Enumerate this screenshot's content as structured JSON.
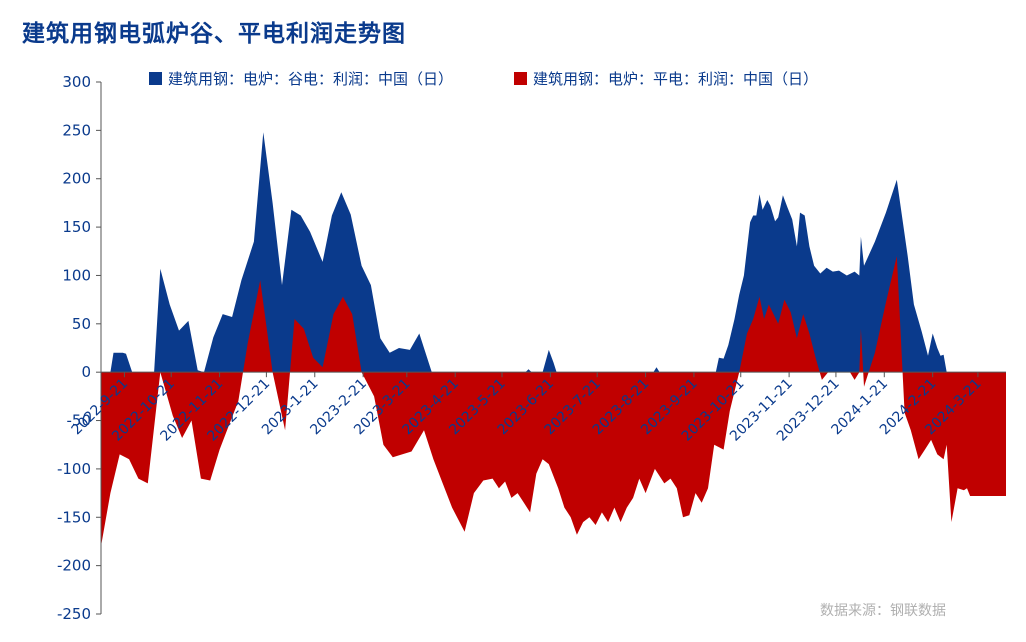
{
  "chart_data": {
    "type": "area",
    "title": "建筑用钢电弧炉谷、平电利润走势图",
    "source": "数据来源：钢联数据",
    "ylim": [
      -250,
      300
    ],
    "yticks": [
      300,
      250,
      200,
      150,
      100,
      50,
      0,
      -50,
      -100,
      -150,
      -200,
      -250
    ],
    "ytick_labels": [
      "300",
      "250",
      "200",
      "150",
      "100",
      "50",
      "0",
      "-50",
      "-100",
      "-150",
      "-200",
      "-250"
    ],
    "x_start": "2022-09-06",
    "x_end": "2024-04-08",
    "xticks": [
      {
        "date": "2022-09-21",
        "label": "2022-9-21"
      },
      {
        "date": "2022-10-21",
        "label": "2022-10-21"
      },
      {
        "date": "2022-11-21",
        "label": "2022-11-21"
      },
      {
        "date": "2022-12-21",
        "label": "2022-12-21"
      },
      {
        "date": "2023-01-21",
        "label": "2023-1-21"
      },
      {
        "date": "2023-02-21",
        "label": "2023-2-21"
      },
      {
        "date": "2023-03-21",
        "label": "2023-3-21"
      },
      {
        "date": "2023-04-21",
        "label": "2023-4-21"
      },
      {
        "date": "2023-05-21",
        "label": "2023-5-21"
      },
      {
        "date": "2023-06-21",
        "label": "2023-6-21"
      },
      {
        "date": "2023-07-21",
        "label": "2023-7-21"
      },
      {
        "date": "2023-08-21",
        "label": "2023-8-21"
      },
      {
        "date": "2023-09-21",
        "label": "2023-9-21"
      },
      {
        "date": "2023-10-21",
        "label": "2023-10-21"
      },
      {
        "date": "2023-11-21",
        "label": "2023-11-21"
      },
      {
        "date": "2023-12-21",
        "label": "2023-12-21"
      },
      {
        "date": "2024-01-21",
        "label": "2024-1-21"
      },
      {
        "date": "2024-02-21",
        "label": "2024-2-21"
      },
      {
        "date": "2024-03-21",
        "label": "2024-3-21"
      }
    ],
    "legend_position": "top",
    "grid": false,
    "series": [
      {
        "name": "建筑用钢：电炉：谷电：利润：中国（日）",
        "color": "#0a3a8c",
        "points": [
          [
            "2022-09-06",
            0
          ],
          [
            "2022-09-12",
            0
          ],
          [
            "2022-09-14",
            20
          ],
          [
            "2022-09-20",
            20
          ],
          [
            "2022-09-22",
            19
          ],
          [
            "2022-09-26",
            0
          ],
          [
            "2022-10-10",
            0
          ],
          [
            "2022-10-14",
            107
          ],
          [
            "2022-10-20",
            70
          ],
          [
            "2022-10-26",
            43
          ],
          [
            "2022-11-01",
            53
          ],
          [
            "2022-11-07",
            2
          ],
          [
            "2022-11-11",
            0
          ],
          [
            "2022-11-17",
            36
          ],
          [
            "2022-11-23",
            60
          ],
          [
            "2022-11-29",
            57
          ],
          [
            "2022-12-05",
            95
          ],
          [
            "2022-12-13",
            135
          ],
          [
            "2022-12-19",
            248
          ],
          [
            "2022-12-25",
            175
          ],
          [
            "2022-12-31",
            90
          ],
          [
            "2023-01-06",
            168
          ],
          [
            "2023-01-12",
            162
          ],
          [
            "2023-01-18",
            145
          ],
          [
            "2023-01-26",
            114
          ],
          [
            "2023-02-01",
            162
          ],
          [
            "2023-02-07",
            186
          ],
          [
            "2023-02-13",
            163
          ],
          [
            "2023-02-20",
            110
          ],
          [
            "2023-02-26",
            90
          ],
          [
            "2023-03-04",
            35
          ],
          [
            "2023-03-10",
            20
          ],
          [
            "2023-03-16",
            25
          ],
          [
            "2023-03-23",
            23
          ],
          [
            "2023-03-29",
            40
          ],
          [
            "2023-04-06",
            0
          ],
          [
            "2023-06-05",
            0
          ],
          [
            "2023-06-07",
            3
          ],
          [
            "2023-06-09",
            0
          ],
          [
            "2023-06-16",
            0
          ],
          [
            "2023-06-20",
            23
          ],
          [
            "2023-06-23",
            10
          ],
          [
            "2023-06-25",
            0
          ],
          [
            "2023-08-26",
            0
          ],
          [
            "2023-08-28",
            5
          ],
          [
            "2023-08-30",
            0
          ],
          [
            "2023-10-05",
            0
          ],
          [
            "2023-10-07",
            15
          ],
          [
            "2023-10-10",
            14
          ],
          [
            "2023-10-13",
            28
          ],
          [
            "2023-10-17",
            55
          ],
          [
            "2023-10-20",
            80
          ],
          [
            "2023-10-23",
            100
          ],
          [
            "2023-10-27",
            155
          ],
          [
            "2023-10-29",
            162
          ],
          [
            "2023-10-31",
            162
          ],
          [
            "2023-11-02",
            184
          ],
          [
            "2023-11-04",
            168
          ],
          [
            "2023-11-07",
            178
          ],
          [
            "2023-11-09",
            172
          ],
          [
            "2023-11-12",
            156
          ],
          [
            "2023-11-14",
            160
          ],
          [
            "2023-11-17",
            183
          ],
          [
            "2023-11-20",
            170
          ],
          [
            "2023-11-23",
            158
          ],
          [
            "2023-11-26",
            130
          ],
          [
            "2023-11-28",
            165
          ],
          [
            "2023-12-01",
            162
          ],
          [
            "2023-12-04",
            130
          ],
          [
            "2023-12-07",
            110
          ],
          [
            "2023-12-11",
            102
          ],
          [
            "2023-12-15",
            108
          ],
          [
            "2023-12-19",
            104
          ],
          [
            "2023-12-23",
            105
          ],
          [
            "2023-12-28",
            100
          ],
          [
            "2024-01-02",
            104
          ],
          [
            "2024-01-05",
            100
          ],
          [
            "2024-01-06",
            140
          ],
          [
            "2024-01-08",
            110
          ],
          [
            "2024-01-15",
            135
          ],
          [
            "2024-01-22",
            165
          ],
          [
            "2024-01-29",
            199
          ],
          [
            "2024-02-05",
            120
          ],
          [
            "2024-02-09",
            70
          ],
          [
            "2024-02-14",
            42
          ],
          [
            "2024-02-18",
            17
          ],
          [
            "2024-02-21",
            40
          ],
          [
            "2024-02-24",
            25
          ],
          [
            "2024-02-26",
            17
          ],
          [
            "2024-02-28",
            18
          ],
          [
            "2024-03-01",
            0
          ],
          [
            "2024-04-08",
            0
          ]
        ]
      },
      {
        "name": "建筑用钢：电炉：平电：利润：中国（日）",
        "color": "#c00000",
        "points": [
          [
            "2022-09-06",
            -180
          ],
          [
            "2022-09-12",
            -125
          ],
          [
            "2022-09-18",
            -85
          ],
          [
            "2022-09-24",
            -90
          ],
          [
            "2022-09-30",
            -110
          ],
          [
            "2022-10-06",
            -115
          ],
          [
            "2022-10-14",
            0
          ],
          [
            "2022-10-22",
            -45
          ],
          [
            "2022-10-28",
            -68
          ],
          [
            "2022-11-03",
            -50
          ],
          [
            "2022-11-09",
            -110
          ],
          [
            "2022-11-15",
            -112
          ],
          [
            "2022-11-21",
            -80
          ],
          [
            "2022-11-27",
            -55
          ],
          [
            "2022-12-03",
            -30
          ],
          [
            "2022-12-09",
            30
          ],
          [
            "2022-12-17",
            95
          ],
          [
            "2022-12-25",
            0
          ],
          [
            "2023-01-02",
            -60
          ],
          [
            "2023-01-08",
            55
          ],
          [
            "2023-01-14",
            45
          ],
          [
            "2023-01-20",
            15
          ],
          [
            "2023-01-26",
            5
          ],
          [
            "2023-02-02",
            60
          ],
          [
            "2023-02-08",
            78
          ],
          [
            "2023-02-14",
            60
          ],
          [
            "2023-02-20",
            0
          ],
          [
            "2023-02-28",
            -25
          ],
          [
            "2023-03-06",
            -75
          ],
          [
            "2023-03-12",
            -88
          ],
          [
            "2023-03-18",
            -85
          ],
          [
            "2023-03-24",
            -82
          ],
          [
            "2023-04-01",
            -60
          ],
          [
            "2023-04-07",
            -90
          ],
          [
            "2023-04-13",
            -115
          ],
          [
            "2023-04-19",
            -140
          ],
          [
            "2023-04-27",
            -165
          ],
          [
            "2023-05-03",
            -125
          ],
          [
            "2023-05-09",
            -112
          ],
          [
            "2023-05-15",
            -110
          ],
          [
            "2023-05-19",
            -120
          ],
          [
            "2023-05-23",
            -113
          ],
          [
            "2023-05-27",
            -130
          ],
          [
            "2023-05-31",
            -125
          ],
          [
            "2023-06-04",
            -135
          ],
          [
            "2023-06-08",
            -145
          ],
          [
            "2023-06-12",
            -105
          ],
          [
            "2023-06-16",
            -90
          ],
          [
            "2023-06-20",
            -95
          ],
          [
            "2023-06-26",
            -120
          ],
          [
            "2023-06-30",
            -140
          ],
          [
            "2023-07-04",
            -150
          ],
          [
            "2023-07-08",
            -168
          ],
          [
            "2023-07-12",
            -155
          ],
          [
            "2023-07-16",
            -150
          ],
          [
            "2023-07-20",
            -158
          ],
          [
            "2023-07-24",
            -145
          ],
          [
            "2023-07-28",
            -155
          ],
          [
            "2023-08-01",
            -140
          ],
          [
            "2023-08-05",
            -155
          ],
          [
            "2023-08-09",
            -140
          ],
          [
            "2023-08-13",
            -130
          ],
          [
            "2023-08-17",
            -110
          ],
          [
            "2023-08-21",
            -125
          ],
          [
            "2023-08-27",
            -100
          ],
          [
            "2023-09-02",
            -115
          ],
          [
            "2023-09-06",
            -110
          ],
          [
            "2023-09-10",
            -120
          ],
          [
            "2023-09-14",
            -150
          ],
          [
            "2023-09-18",
            -148
          ],
          [
            "2023-09-22",
            -125
          ],
          [
            "2023-09-26",
            -135
          ],
          [
            "2023-09-30",
            -120
          ],
          [
            "2023-10-04",
            -75
          ],
          [
            "2023-10-10",
            -80
          ],
          [
            "2023-10-14",
            -40
          ],
          [
            "2023-10-20",
            0
          ],
          [
            "2023-10-25",
            40
          ],
          [
            "2023-10-29",
            55
          ],
          [
            "2023-11-02",
            78
          ],
          [
            "2023-11-05",
            55
          ],
          [
            "2023-11-08",
            70
          ],
          [
            "2023-11-11",
            60
          ],
          [
            "2023-11-14",
            50
          ],
          [
            "2023-11-18",
            75
          ],
          [
            "2023-11-22",
            62
          ],
          [
            "2023-11-26",
            35
          ],
          [
            "2023-11-30",
            60
          ],
          [
            "2023-12-04",
            40
          ],
          [
            "2023-12-08",
            15
          ],
          [
            "2023-12-12",
            -8
          ],
          [
            "2023-12-16",
            0
          ],
          [
            "2023-12-30",
            0
          ],
          [
            "2024-01-02",
            -8
          ],
          [
            "2024-01-05",
            0
          ],
          [
            "2024-01-06",
            45
          ],
          [
            "2024-01-08",
            -15
          ],
          [
            "2024-01-15",
            20
          ],
          [
            "2024-01-22",
            72
          ],
          [
            "2024-01-29",
            120
          ],
          [
            "2024-02-03",
            -42
          ],
          [
            "2024-02-07",
            -60
          ],
          [
            "2024-02-12",
            -90
          ],
          [
            "2024-02-16",
            -80
          ],
          [
            "2024-02-20",
            -70
          ],
          [
            "2024-02-24",
            -85
          ],
          [
            "2024-02-28",
            -90
          ],
          [
            "2024-03-01",
            -75
          ],
          [
            "2024-03-04",
            -155
          ],
          [
            "2024-03-08",
            -120
          ],
          [
            "2024-03-12",
            -122
          ],
          [
            "2024-03-14",
            -120
          ],
          [
            "2024-03-16",
            -128
          ],
          [
            "2024-04-08",
            -128
          ]
        ]
      }
    ]
  }
}
